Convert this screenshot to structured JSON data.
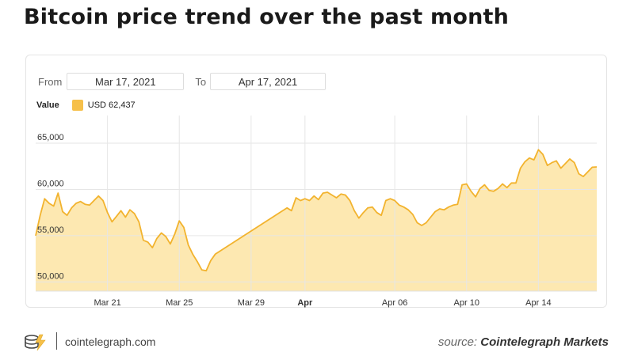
{
  "title": "Bitcoin price trend over the past month",
  "range": {
    "from_label": "From",
    "from_value": "Mar 17, 2021",
    "to_label": "To",
    "to_value": "Apr 17, 2021"
  },
  "legend": {
    "title": "Value",
    "entry": "USD 62,437",
    "color": "#f6c04a"
  },
  "footer": {
    "site": "cointelegraph.com",
    "source_prefix": "source:",
    "source_name": "Cointelegraph Markets",
    "logo_icon": "cointelegraph-logo-icon"
  },
  "chart_data": {
    "type": "area",
    "title": "",
    "xlabel": "",
    "ylabel": "",
    "ylim": [
      49000,
      68000
    ],
    "yticks": [
      50000,
      55000,
      60000,
      65000
    ],
    "ytick_labels": [
      "50,000",
      "55,000",
      "60,000",
      "65,000"
    ],
    "xticks": [
      {
        "date": "2021-03-21",
        "label": "Mar 21",
        "bold": false
      },
      {
        "date": "2021-03-25",
        "label": "Mar 25",
        "bold": false
      },
      {
        "date": "2021-03-29",
        "label": "Mar 29",
        "bold": false
      },
      {
        "date": "2021-04-01",
        "label": "Apr",
        "bold": true
      },
      {
        "date": "2021-04-06",
        "label": "Apr 06",
        "bold": false
      },
      {
        "date": "2021-04-10",
        "label": "Apr 10",
        "bold": false
      },
      {
        "date": "2021-04-14",
        "label": "Apr 14",
        "bold": false
      }
    ],
    "grid": true,
    "line_color": "#f2b32e",
    "fill_color": "#fde5a9",
    "series": [
      {
        "x": [
          "2021-03-17 00:00",
          "2021-03-17 06:00",
          "2021-03-17 12:00",
          "2021-03-17 18:00",
          "2021-03-18 00:00",
          "2021-03-18 06:00",
          "2021-03-18 12:00",
          "2021-03-18 18:00",
          "2021-03-19 00:00",
          "2021-03-19 06:00",
          "2021-03-19 12:00",
          "2021-03-19 18:00",
          "2021-03-20 00:00",
          "2021-03-20 06:00",
          "2021-03-20 12:00",
          "2021-03-20 18:00",
          "2021-03-21 00:00",
          "2021-03-21 06:00",
          "2021-03-21 12:00",
          "2021-03-21 18:00",
          "2021-03-22 00:00",
          "2021-03-22 06:00",
          "2021-03-22 12:00",
          "2021-03-22 18:00",
          "2021-03-23 00:00",
          "2021-03-23 06:00",
          "2021-03-23 12:00",
          "2021-03-23 18:00",
          "2021-03-24 00:00",
          "2021-03-24 06:00",
          "2021-03-24 12:00",
          "2021-03-24 18:00",
          "2021-03-25 00:00",
          "2021-03-25 06:00",
          "2021-03-25 12:00",
          "2021-03-25 18:00",
          "2021-03-26 00:00",
          "2021-03-26 06:00",
          "2021-03-26 12:00",
          "2021-03-26 18:00",
          "2021-03-27 00:00",
          "2021-03-31 00:00",
          "2021-03-31 06:00",
          "2021-03-31 12:00",
          "2021-03-31 18:00",
          "2021-04-01 00:00",
          "2021-04-01 06:00",
          "2021-04-01 12:00",
          "2021-04-01 18:00",
          "2021-04-02 00:00",
          "2021-04-02 06:00",
          "2021-04-02 12:00",
          "2021-04-02 18:00",
          "2021-04-03 00:00",
          "2021-04-03 06:00",
          "2021-04-03 12:00",
          "2021-04-03 18:00",
          "2021-04-04 00:00",
          "2021-04-04 06:00",
          "2021-04-04 12:00",
          "2021-04-04 18:00",
          "2021-04-05 00:00",
          "2021-04-05 06:00",
          "2021-04-05 12:00",
          "2021-04-05 18:00",
          "2021-04-06 00:00",
          "2021-04-06 06:00",
          "2021-04-06 12:00",
          "2021-04-06 18:00",
          "2021-04-07 00:00",
          "2021-04-07 06:00",
          "2021-04-07 12:00",
          "2021-04-07 18:00",
          "2021-04-08 00:00",
          "2021-04-08 06:00",
          "2021-04-08 12:00",
          "2021-04-08 18:00",
          "2021-04-09 00:00",
          "2021-04-09 06:00",
          "2021-04-09 12:00",
          "2021-04-09 18:00",
          "2021-04-10 00:00",
          "2021-04-10 06:00",
          "2021-04-10 12:00",
          "2021-04-10 18:00",
          "2021-04-11 00:00",
          "2021-04-11 06:00",
          "2021-04-11 12:00",
          "2021-04-11 18:00",
          "2021-04-12 00:00",
          "2021-04-12 06:00",
          "2021-04-12 12:00",
          "2021-04-12 18:00",
          "2021-04-13 00:00",
          "2021-04-13 06:00",
          "2021-04-13 12:00",
          "2021-04-13 18:00",
          "2021-04-14 00:00",
          "2021-04-14 06:00",
          "2021-04-14 12:00",
          "2021-04-14 18:00",
          "2021-04-15 00:00",
          "2021-04-15 06:00",
          "2021-04-15 12:00",
          "2021-04-15 18:00",
          "2021-04-16 00:00",
          "2021-04-16 06:00",
          "2021-04-16 12:00",
          "2021-04-16 18:00",
          "2021-04-17 00:00",
          "2021-04-17 06:00"
        ],
        "values": [
          55000,
          57200,
          59000,
          58500,
          58200,
          59600,
          57600,
          57200,
          58000,
          58500,
          58700,
          58400,
          58300,
          58800,
          59300,
          58800,
          57500,
          56500,
          57100,
          57700,
          57000,
          57800,
          57400,
          56500,
          54500,
          54300,
          53700,
          54700,
          55300,
          54900,
          54100,
          55200,
          56600,
          55900,
          54000,
          53000,
          52200,
          51300,
          51200,
          52300,
          53000,
          58000,
          57700,
          59100,
          58800,
          59000,
          58800,
          59300,
          58900,
          59600,
          59700,
          59400,
          59100,
          59500,
          59400,
          58800,
          57700,
          56900,
          57500,
          58000,
          58100,
          57500,
          57200,
          58800,
          59000,
          58800,
          58300,
          58100,
          57800,
          57300,
          56400,
          56100,
          56400,
          57000,
          57600,
          57900,
          57800,
          58100,
          58300,
          58400,
          60500,
          60600,
          59800,
          59200,
          60100,
          60500,
          59900,
          59800,
          60100,
          60600,
          60200,
          60700,
          60700,
          62300,
          63000,
          63400,
          63200,
          64300,
          63800,
          62600,
          62900,
          63100,
          62300,
          62800,
          63300,
          62900,
          61700,
          61400,
          61900,
          62400,
          62437
        ]
      }
    ]
  }
}
